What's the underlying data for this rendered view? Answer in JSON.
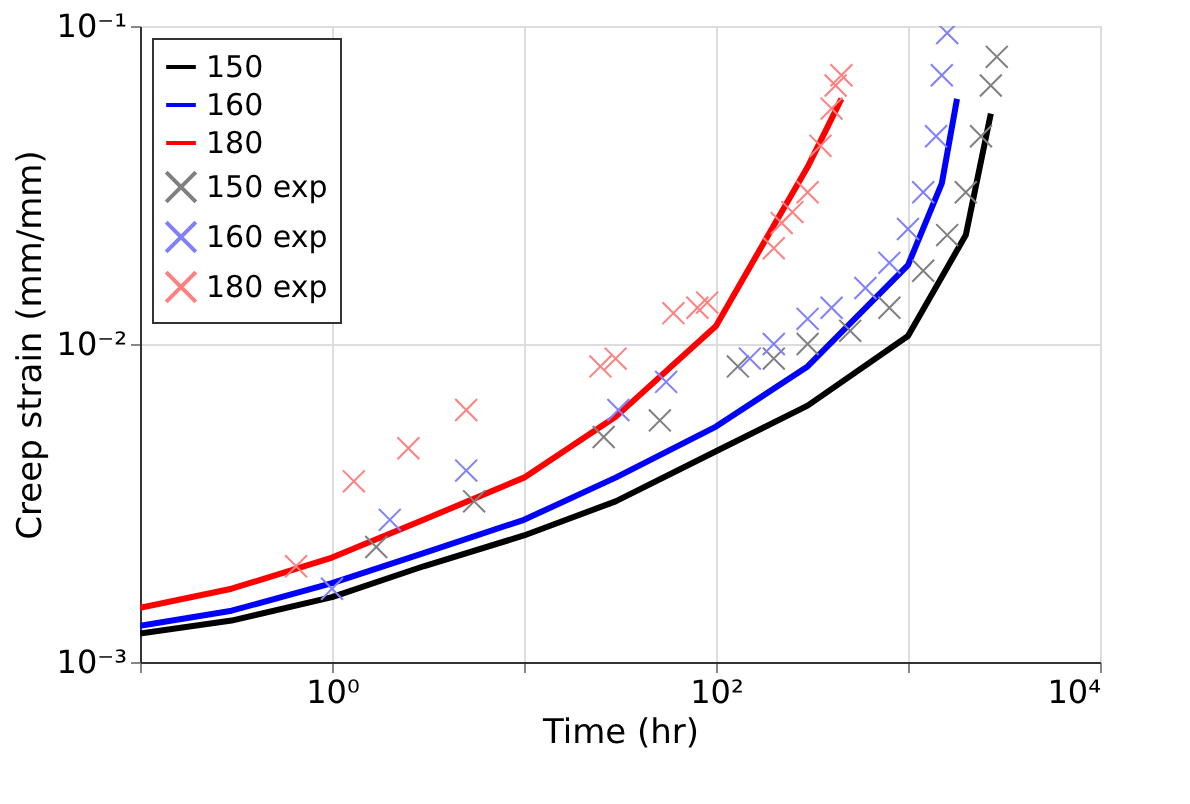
{
  "chart_data": {
    "type": "line",
    "xlabel": "Time (hr)",
    "ylabel": "Creep strain (mm/mm)",
    "log": "xy",
    "grid": true,
    "legend": "top left",
    "xlim": [
      0.1,
      10000
    ],
    "ylim": [
      0.001,
      0.1
    ],
    "xticks": [
      {
        "value": 0.1,
        "label": null
      },
      {
        "value": 1,
        "label": "10⁰"
      },
      {
        "value": 10,
        "label": null
      },
      {
        "value": 100,
        "label": "10²"
      },
      {
        "value": 1000,
        "label": null
      },
      {
        "value": 10000,
        "label": "10⁴"
      }
    ],
    "yticks": [
      {
        "value": 0.001,
        "label": "10⁻³"
      },
      {
        "value": 0.01,
        "label": "10⁻²"
      },
      {
        "value": 0.1,
        "label": "10⁻¹"
      }
    ],
    "series": [
      {
        "name": "150",
        "marker": "none",
        "color": "#000000",
        "x": [
          0.1,
          0.3,
          1,
          3,
          10,
          30,
          100,
          300,
          1000,
          2000,
          2700
        ],
        "values": [
          0.00123,
          0.00135,
          0.0016,
          0.002,
          0.0025,
          0.0032,
          0.0046,
          0.0064,
          0.0106,
          0.022,
          0.053
        ]
      },
      {
        "name": "160",
        "marker": "none",
        "color": "#0000ff",
        "x": [
          0.1,
          0.3,
          1,
          3,
          10,
          30,
          100,
          300,
          1000,
          1500,
          1800
        ],
        "values": [
          0.0013,
          0.00145,
          0.00177,
          0.0022,
          0.0028,
          0.0038,
          0.0055,
          0.0085,
          0.0177,
          0.032,
          0.059
        ]
      },
      {
        "name": "180",
        "marker": "none",
        "color": "#ff0000",
        "x": [
          0.1,
          0.3,
          1,
          3,
          10,
          30,
          100,
          200,
          300,
          450
        ],
        "values": [
          0.00148,
          0.0017,
          0.00213,
          0.0028,
          0.0038,
          0.0059,
          0.0114,
          0.0236,
          0.036,
          0.059
        ]
      },
      {
        "name": "150 exp",
        "type": "scatter",
        "marker": "cross",
        "color": "#808080",
        "x": [
          1.7,
          5.5,
          26,
          51,
          130,
          200,
          300,
          500,
          800,
          1200,
          1600,
          2000,
          2400,
          2700,
          2900
        ],
        "values": [
          0.0023,
          0.0032,
          0.0051,
          0.00575,
          0.0085,
          0.009,
          0.01,
          0.011,
          0.013,
          0.017,
          0.022,
          0.03,
          0.045,
          0.065,
          0.08
        ]
      },
      {
        "name": "160 exp",
        "type": "scatter",
        "marker": "cross",
        "color": "#8080ff",
        "x": [
          1,
          2,
          5,
          31,
          55,
          150,
          200,
          300,
          400,
          600,
          800,
          1000,
          1200,
          1400,
          1500,
          1600
        ],
        "values": [
          0.0017,
          0.0028,
          0.004,
          0.0062,
          0.0076,
          0.009,
          0.01,
          0.012,
          0.013,
          0.015,
          0.018,
          0.023,
          0.03,
          0.045,
          0.07,
          0.095
        ]
      },
      {
        "name": "180 exp",
        "type": "scatter",
        "marker": "cross",
        "color": "#ff8080",
        "x": [
          0.65,
          1.3,
          2.5,
          5,
          25,
          30,
          60,
          80,
          90,
          200,
          220,
          250,
          300,
          350,
          400,
          420,
          450
        ],
        "values": [
          0.002,
          0.0037,
          0.0047,
          0.0062,
          0.0085,
          0.009,
          0.0125,
          0.013,
          0.0135,
          0.02,
          0.024,
          0.026,
          0.03,
          0.042,
          0.055,
          0.065,
          0.07
        ]
      }
    ]
  }
}
